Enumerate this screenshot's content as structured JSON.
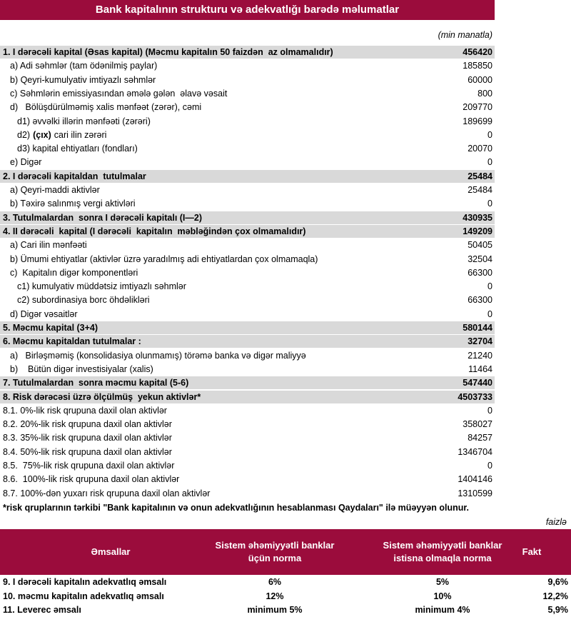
{
  "title": "Bank kapitalının strukturu və adekvatlığı barədə məlumatlar",
  "unit": "(min manatla)",
  "rows": [
    {
      "label": "1. I dərəcəli kapital (Əsas kapital) (Məcmu kapitalın 50 faizdən  az olmamalıdır)",
      "value": 456420
    },
    {
      "label": "a) Adi səhmlər (tam ödənilmiş paylar)",
      "value": 185850
    },
    {
      "label": "b) Qeyri-kumulyativ imtiyazlı səhmlər",
      "value": 60000
    },
    {
      "label": "c) Səhmlərin emissiyasından əmələ gələn  əlavə vəsait",
      "value": 800
    },
    {
      "label": "d)   Bölüşdürülməmiş xalis mənfəət (zərər), cəmi",
      "value": 209770
    },
    {
      "label": "d1) əvvəlki illərin mənfəəti (zərəri)",
      "value": 189699
    },
    {
      "label": "d2)",
      "bold": "(çıx)",
      "rest": "cari ilin zərəri",
      "value": 0
    },
    {
      "label": "d3) kapital ehtiyatları (fondları)",
      "value": 20070
    },
    {
      "label": "e) Digər",
      "value": 0
    },
    {
      "label": "2. I dərəcəli kapitaldan  tutulmalar",
      "value": 25484
    },
    {
      "label": "a) Qeyri-maddi aktivlər",
      "value": 25484
    },
    {
      "label": "b) Təxirə salınmış vergi aktivləri",
      "value": 0
    },
    {
      "label": "3. Tutulmalardan  sonra I dərəcəli kapitalı (I—2)",
      "value": 430935
    },
    {
      "label": "4. II dərəcəli  kapital (I dərəcəli  kapitalın  məbləğindən çox olmamalıdır)",
      "value": 149209
    },
    {
      "label": "a) Cari ilin mənfəəti",
      "value": 50405
    },
    {
      "label": "b) Ümumi ehtiyatlar (aktivlər üzrə yaradılmış adi ehtiyatlardan çox olmamaqla)",
      "value": 32504
    },
    {
      "label": "c)  Kapitalın digər komponentləri",
      "value": 66300
    },
    {
      "label": "c1) kumulyativ müddətsiz imtiyazlı səhmlər",
      "value": 0
    },
    {
      "label": "c2) subordinasiya borc öhdəlikləri",
      "value": 66300
    },
    {
      "label": "d) Digər vəsaitlər",
      "value": 0
    },
    {
      "label": "5. Məcmu kapital (3+4)",
      "value": 580144
    },
    {
      "label": "6. Məcmu kapitaldan tutulmalar :",
      "value": 32704
    },
    {
      "label": "a)   Birləşməmiş (konsolidasiya olunmamış) törəmə banka və digər maliyyə",
      "value": 21240
    },
    {
      "label": "b)    Bütün digər investisiyalar (xalis)",
      "value": 11464
    },
    {
      "label": "7. Tutulmalardan  sonra məcmu kapital (5-6)",
      "value": 547440
    },
    {
      "label": "8. Risk dərəcəsi üzrə ölçülmüş  yekun aktivlər*",
      "value": 4503733
    },
    {
      "label": "8.1. 0%-lik risk qrupuna daxil olan aktivlər",
      "value": 0
    },
    {
      "label": "8.2. 20%-lik risk qrupuna daxil olan aktivlər",
      "value": 358027
    },
    {
      "label": "8.3. 35%-lik risk qrupuna daxil olan aktivlər",
      "value": 84257
    },
    {
      "label": "8.4. 50%-lik risk qrupuna daxil olan aktivlər",
      "value": 1346704
    },
    {
      "label": "8.5.  75%-lik risk qrupuna daxil olan aktivlər",
      "value": 0
    },
    {
      "label": "8.6.  100%-lik risk qrupuna daxil olan aktivlər",
      "value": 1404146
    },
    {
      "label": "8.7. 100%-dən yuxarı risk qrupuna daxil olan aktivlər",
      "value": 1310599
    }
  ],
  "footnote": "*risk qruplarının tərkibi \"Bank kapitalının və onun adekvatlığının hesablanması Qaydaları\" ilə müəyyən olunur.",
  "ratio_unit": "faizlə",
  "ratios": {
    "header": [
      "Əmsallar",
      "Sistem əhəmiyyətli banklar üçün norma",
      "Sistem əhəmiyyətli banklar istisna olmaqla norma",
      "Fakt"
    ],
    "rows": [
      [
        "9.  I dərəcəli  kapitalın  adekvatlıq əmsalı",
        "6%",
        "5%",
        "9,6%"
      ],
      [
        "10. məcmu kapitalın  adekvatlıq  əmsalı",
        "12%",
        "10%",
        "12,2%"
      ],
      [
        "11. Leverec əmsalı",
        "minimum 5%",
        "minimum 4%",
        "5,9%"
      ]
    ]
  }
}
